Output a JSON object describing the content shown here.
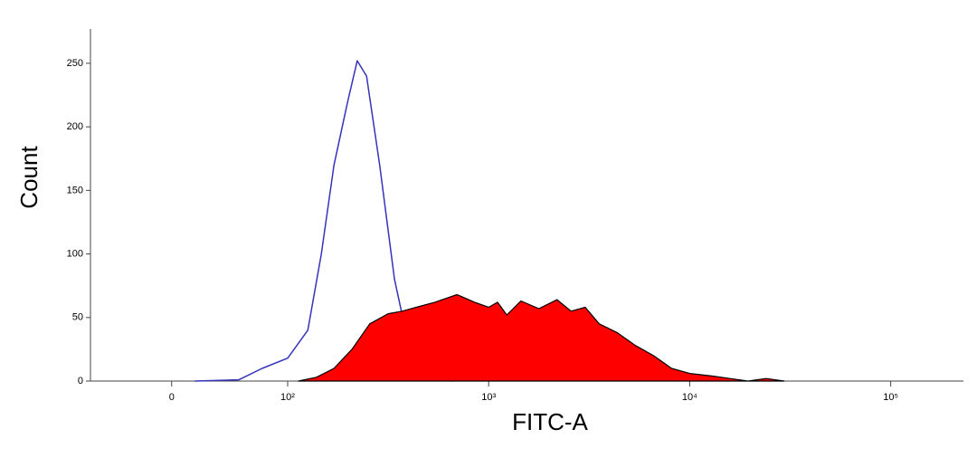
{
  "chart_data": {
    "type": "histogram-overlay",
    "xlabel": "FITC-A",
    "ylabel": "Count",
    "xscale": "symlog",
    "linthresh": 100,
    "linscale": 0.577,
    "xlim": [
      -70,
      230000
    ],
    "ylim": [
      0,
      277
    ],
    "xticks": [
      0,
      {
        "value": 100,
        "label": "10²"
      },
      {
        "value": 1000,
        "label": "10³"
      },
      {
        "value": 10000,
        "label": "10⁴"
      },
      {
        "value": 100000,
        "label": "10⁵"
      }
    ],
    "yticks": [
      0,
      50,
      100,
      150,
      200,
      250
    ],
    "series": [
      {
        "color": "#3333bb",
        "filled": false,
        "x": [
          20,
          58,
          78,
          100,
          126,
          147,
          170,
          199,
          222,
          247,
          287,
          340,
          398,
          462,
          540,
          660
        ],
        "values": [
          0,
          1,
          10,
          18,
          40,
          100,
          170,
          220,
          252,
          240,
          170,
          80,
          30,
          8,
          2,
          0
        ]
      },
      {
        "color": "#ff0000",
        "filled": true,
        "x": [
          113,
          139,
          170,
          209,
          256,
          316,
          371,
          436,
          540,
          696,
          851,
          1000,
          1107,
          1231,
          1446,
          1778,
          2188,
          2570,
          3020,
          3548,
          4365,
          5370,
          6607,
          8128,
          10000,
          12880,
          15850,
          19500,
          24000,
          29500
        ],
        "values": [
          0,
          3,
          10,
          25,
          45,
          53,
          55,
          58,
          62,
          68,
          62,
          58,
          62,
          52,
          63,
          57,
          64,
          55,
          58,
          45,
          38,
          28,
          20,
          10,
          6,
          4,
          2,
          0,
          2,
          0
        ]
      }
    ]
  }
}
